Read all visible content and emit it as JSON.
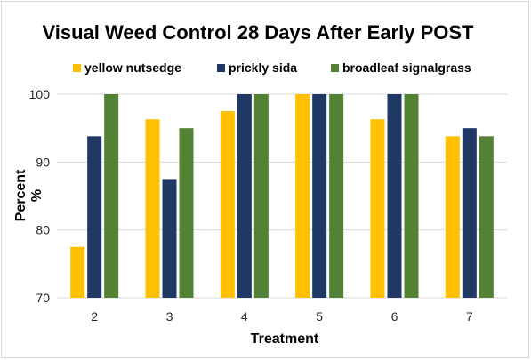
{
  "chart_data": {
    "type": "bar",
    "title": "Visual Weed Control 28 Days After Early POST",
    "xlabel": "Treatment",
    "ylabel_line1": "Percent",
    "ylabel_line2": "%",
    "categories": [
      "2",
      "3",
      "4",
      "5",
      "6",
      "7"
    ],
    "ylim": [
      70,
      100
    ],
    "yticks": [
      "70",
      "80",
      "90",
      "100"
    ],
    "grid": true,
    "legend_position": "top",
    "series": [
      {
        "name": "yellow nutsedge",
        "color": "#FFC000",
        "values": [
          77.5,
          96.3,
          97.5,
          100,
          96.3,
          93.8
        ]
      },
      {
        "name": "prickly sida",
        "color": "#203864",
        "values": [
          93.8,
          87.5,
          100,
          100,
          100,
          95
        ]
      },
      {
        "name": "broadleaf signalgrass",
        "color": "#548235",
        "values": [
          100,
          95,
          100,
          100,
          100,
          93.8
        ]
      }
    ]
  }
}
